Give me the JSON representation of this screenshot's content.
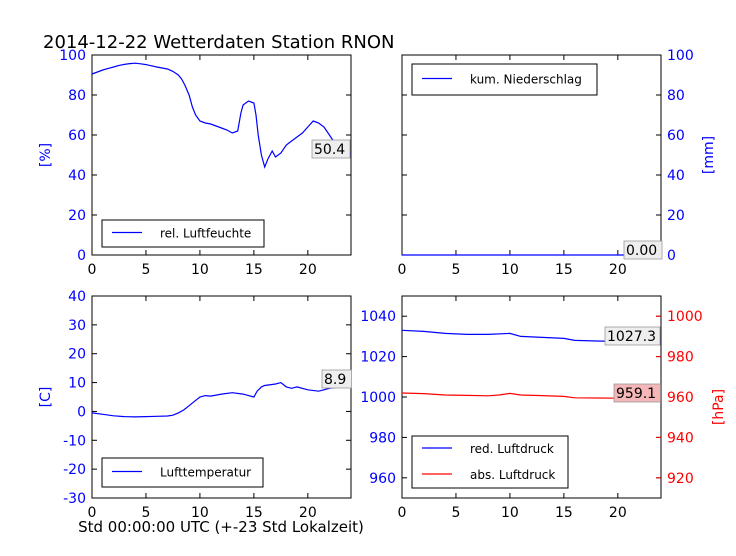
{
  "title": "2014-12-22 Wetterdaten Station RNON",
  "xlabel": "Std 00:00:00 UTC (+-23 Std Lokalzeit)",
  "colors": {
    "blue": "#0000ff",
    "red": "#ff0000",
    "axis": "#000000",
    "badge_red": "#f4b6b6",
    "badge_grey": "#eeeeee"
  },
  "chart_data": [
    {
      "id": "humidity",
      "type": "line",
      "ylabel": "[%]",
      "xlim": [
        0,
        24
      ],
      "ylim": [
        0,
        100
      ],
      "xticks": [
        0,
        5,
        10,
        15,
        20
      ],
      "yticks": [
        0,
        20,
        40,
        60,
        80,
        100
      ],
      "legend": "bottom-left",
      "annotation": "50.4",
      "series": [
        {
          "name": "rel. Luftfeuchte",
          "color": "#0000ff",
          "points": [
            [
              0,
              90.5
            ],
            [
              0.5,
              91.5
            ],
            [
              1,
              92.5
            ],
            [
              1.5,
              93.3
            ],
            [
              2,
              94
            ],
            [
              2.5,
              94.8
            ],
            [
              3,
              95.3
            ],
            [
              3.5,
              95.7
            ],
            [
              4,
              95.9
            ],
            [
              4.5,
              95.6
            ],
            [
              5,
              95.2
            ],
            [
              5.5,
              94.6
            ],
            [
              6,
              94
            ],
            [
              6.5,
              93.5
            ],
            [
              7,
              93
            ],
            [
              7.5,
              91.8
            ],
            [
              8,
              90
            ],
            [
              8.3,
              88
            ],
            [
              8.6,
              85
            ],
            [
              9,
              80
            ],
            [
              9.3,
              74
            ],
            [
              9.6,
              70
            ],
            [
              10,
              67
            ],
            [
              10.5,
              66
            ],
            [
              11,
              65.5
            ],
            [
              11.5,
              64.5
            ],
            [
              12,
              63.5
            ],
            [
              12.5,
              62.5
            ],
            [
              13,
              61
            ],
            [
              13.5,
              62
            ],
            [
              13.8,
              71
            ],
            [
              14,
              75
            ],
            [
              14.5,
              77
            ],
            [
              15,
              76
            ],
            [
              15.2,
              70
            ],
            [
              15.4,
              60
            ],
            [
              15.7,
              50
            ],
            [
              16,
              44
            ],
            [
              16.3,
              48
            ],
            [
              16.7,
              52
            ],
            [
              17,
              49
            ],
            [
              17.5,
              51
            ],
            [
              18,
              55
            ],
            [
              18.5,
              57
            ],
            [
              19,
              59
            ],
            [
              19.5,
              61
            ],
            [
              20,
              64
            ],
            [
              20.5,
              67
            ],
            [
              21,
              66
            ],
            [
              21.5,
              64
            ],
            [
              22,
              60
            ],
            [
              22.5,
              56
            ],
            [
              23,
              55
            ],
            [
              23.5,
              52
            ],
            [
              24,
              50.4
            ]
          ]
        }
      ]
    },
    {
      "id": "precipitation",
      "type": "line",
      "ylabel": "[mm]",
      "xlim": [
        0,
        24
      ],
      "ylim": [
        0,
        100
      ],
      "xticks": [
        0,
        5,
        10,
        15,
        20
      ],
      "yticks": [
        0,
        20,
        40,
        60,
        80,
        100
      ],
      "y_axis_side": "right",
      "legend": "top-left",
      "annotation": "0.00",
      "series": [
        {
          "name": "kum. Niederschlag",
          "color": "#0000ff",
          "points": [
            [
              0,
              0
            ],
            [
              24,
              0
            ]
          ]
        }
      ]
    },
    {
      "id": "temperature",
      "type": "line",
      "ylabel": "[C]",
      "xlim": [
        0,
        24
      ],
      "ylim": [
        -30,
        40
      ],
      "xticks": [
        0,
        5,
        10,
        15,
        20
      ],
      "yticks": [
        -30,
        -20,
        -10,
        0,
        10,
        20,
        30,
        40
      ],
      "legend": "bottom-left",
      "annotation": "8.9",
      "series": [
        {
          "name": "Lufttemperatur",
          "color": "#0000ff",
          "points": [
            [
              0,
              -0.5
            ],
            [
              1,
              -1
            ],
            [
              2,
              -1.5
            ],
            [
              3,
              -1.8
            ],
            [
              4,
              -1.9
            ],
            [
              5,
              -1.8
            ],
            [
              6,
              -1.7
            ],
            [
              7,
              -1.6
            ],
            [
              7.5,
              -1.3
            ],
            [
              8,
              -0.5
            ],
            [
              8.5,
              0.5
            ],
            [
              9,
              2
            ],
            [
              9.5,
              3.5
            ],
            [
              10,
              5
            ],
            [
              10.5,
              5.5
            ],
            [
              11,
              5.3
            ],
            [
              12,
              6
            ],
            [
              13,
              6.5
            ],
            [
              14,
              6
            ],
            [
              14.5,
              5.5
            ],
            [
              15,
              5
            ],
            [
              15.3,
              7
            ],
            [
              15.7,
              8.5
            ],
            [
              16,
              9
            ],
            [
              17,
              9.5
            ],
            [
              17.5,
              10
            ],
            [
              18,
              8.5
            ],
            [
              18.5,
              8
            ],
            [
              19,
              8.5
            ],
            [
              20,
              7.5
            ],
            [
              21,
              7
            ],
            [
              21.5,
              7.5
            ],
            [
              22,
              8
            ],
            [
              23,
              8.5
            ],
            [
              24,
              8.9
            ]
          ]
        }
      ]
    },
    {
      "id": "pressure",
      "type": "line",
      "xlim": [
        0,
        24
      ],
      "ylim": [
        950,
        1050
      ],
      "xticks": [
        0,
        5,
        10,
        15,
        20
      ],
      "yticks": [
        960,
        980,
        1000,
        1020,
        1040
      ],
      "y2label": "[hPa]",
      "y2lim": [
        910,
        1010
      ],
      "y2ticks": [
        920,
        940,
        960,
        980,
        1000
      ],
      "legend": "bottom-left",
      "annotations": [
        "1027.3",
        "959.1"
      ],
      "series": [
        {
          "name": "red. Luftdruck",
          "color": "#0000ff",
          "axis": "left",
          "points": [
            [
              0,
              1033
            ],
            [
              2,
              1032.5
            ],
            [
              4,
              1031.5
            ],
            [
              6,
              1031
            ],
            [
              8,
              1031
            ],
            [
              10,
              1031.5
            ],
            [
              11,
              1030
            ],
            [
              13,
              1029.5
            ],
            [
              15,
              1029
            ],
            [
              16,
              1028
            ],
            [
              18,
              1027.7
            ],
            [
              20,
              1027.5
            ],
            [
              22,
              1027.4
            ],
            [
              24,
              1027.3
            ]
          ]
        },
        {
          "name": "abs. Luftdruck",
          "color": "#ff0000",
          "axis": "right",
          "points": [
            [
              0,
              962
            ],
            [
              2,
              961.7
            ],
            [
              4,
              961
            ],
            [
              6,
              960.8
            ],
            [
              8,
              960.6
            ],
            [
              9,
              961
            ],
            [
              10,
              961.8
            ],
            [
              11,
              961
            ],
            [
              13,
              960.7
            ],
            [
              15,
              960.3
            ],
            [
              16,
              959.6
            ],
            [
              18,
              959.5
            ],
            [
              20,
              959.4
            ],
            [
              22,
              959.3
            ],
            [
              24,
              959.1
            ]
          ]
        }
      ]
    }
  ]
}
